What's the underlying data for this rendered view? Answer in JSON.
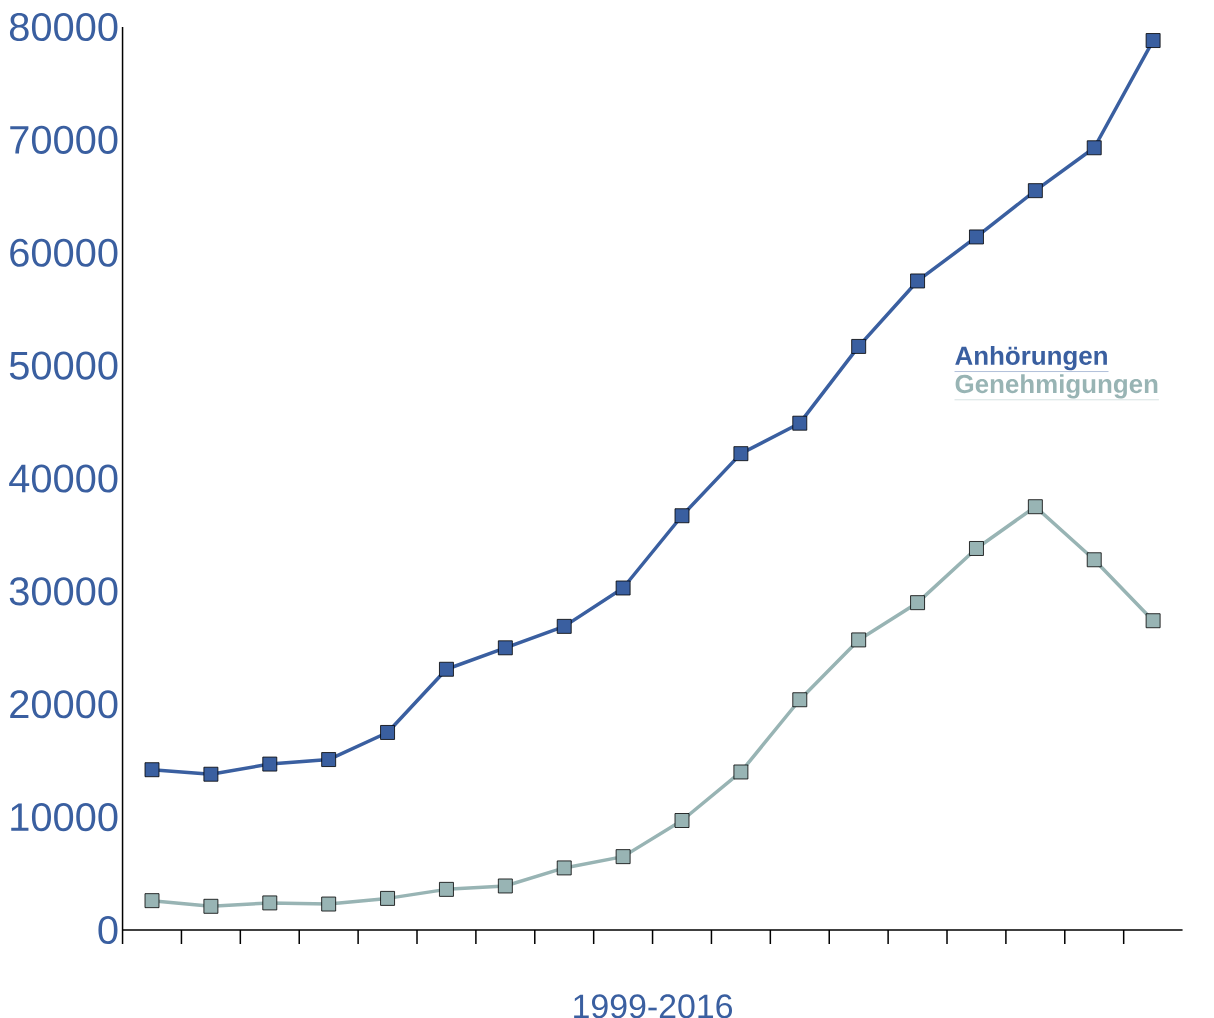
{
  "chart_data": {
    "type": "line",
    "xlabel": "1999-2016",
    "categories": [
      null,
      null,
      null,
      null,
      null,
      null,
      null,
      null,
      null,
      null,
      null,
      null,
      null,
      null,
      null,
      null,
      null,
      null
    ],
    "ylim": [
      0,
      80000
    ],
    "yticks": [
      0,
      10000,
      20000,
      30000,
      40000,
      50000,
      60000,
      70000,
      80000
    ],
    "series": [
      {
        "name": "Anhörungen",
        "color": "#3a5fa0",
        "values": [
          14200,
          13800,
          14700,
          15100,
          17500,
          23100,
          25000,
          26900,
          30300,
          36700,
          42200,
          44900,
          51700,
          57500,
          61400,
          65500,
          69300,
          78800
        ]
      },
      {
        "name": "Genehmigungen",
        "color": "#98b4b4",
        "values": [
          2600,
          2100,
          2400,
          2300,
          2800,
          3600,
          3900,
          5500,
          6500,
          9700,
          14000,
          20400,
          25700,
          29000,
          33800,
          37500,
          32800,
          27400
        ]
      }
    ],
    "marker": "square",
    "legend": "right",
    "grid": false
  }
}
